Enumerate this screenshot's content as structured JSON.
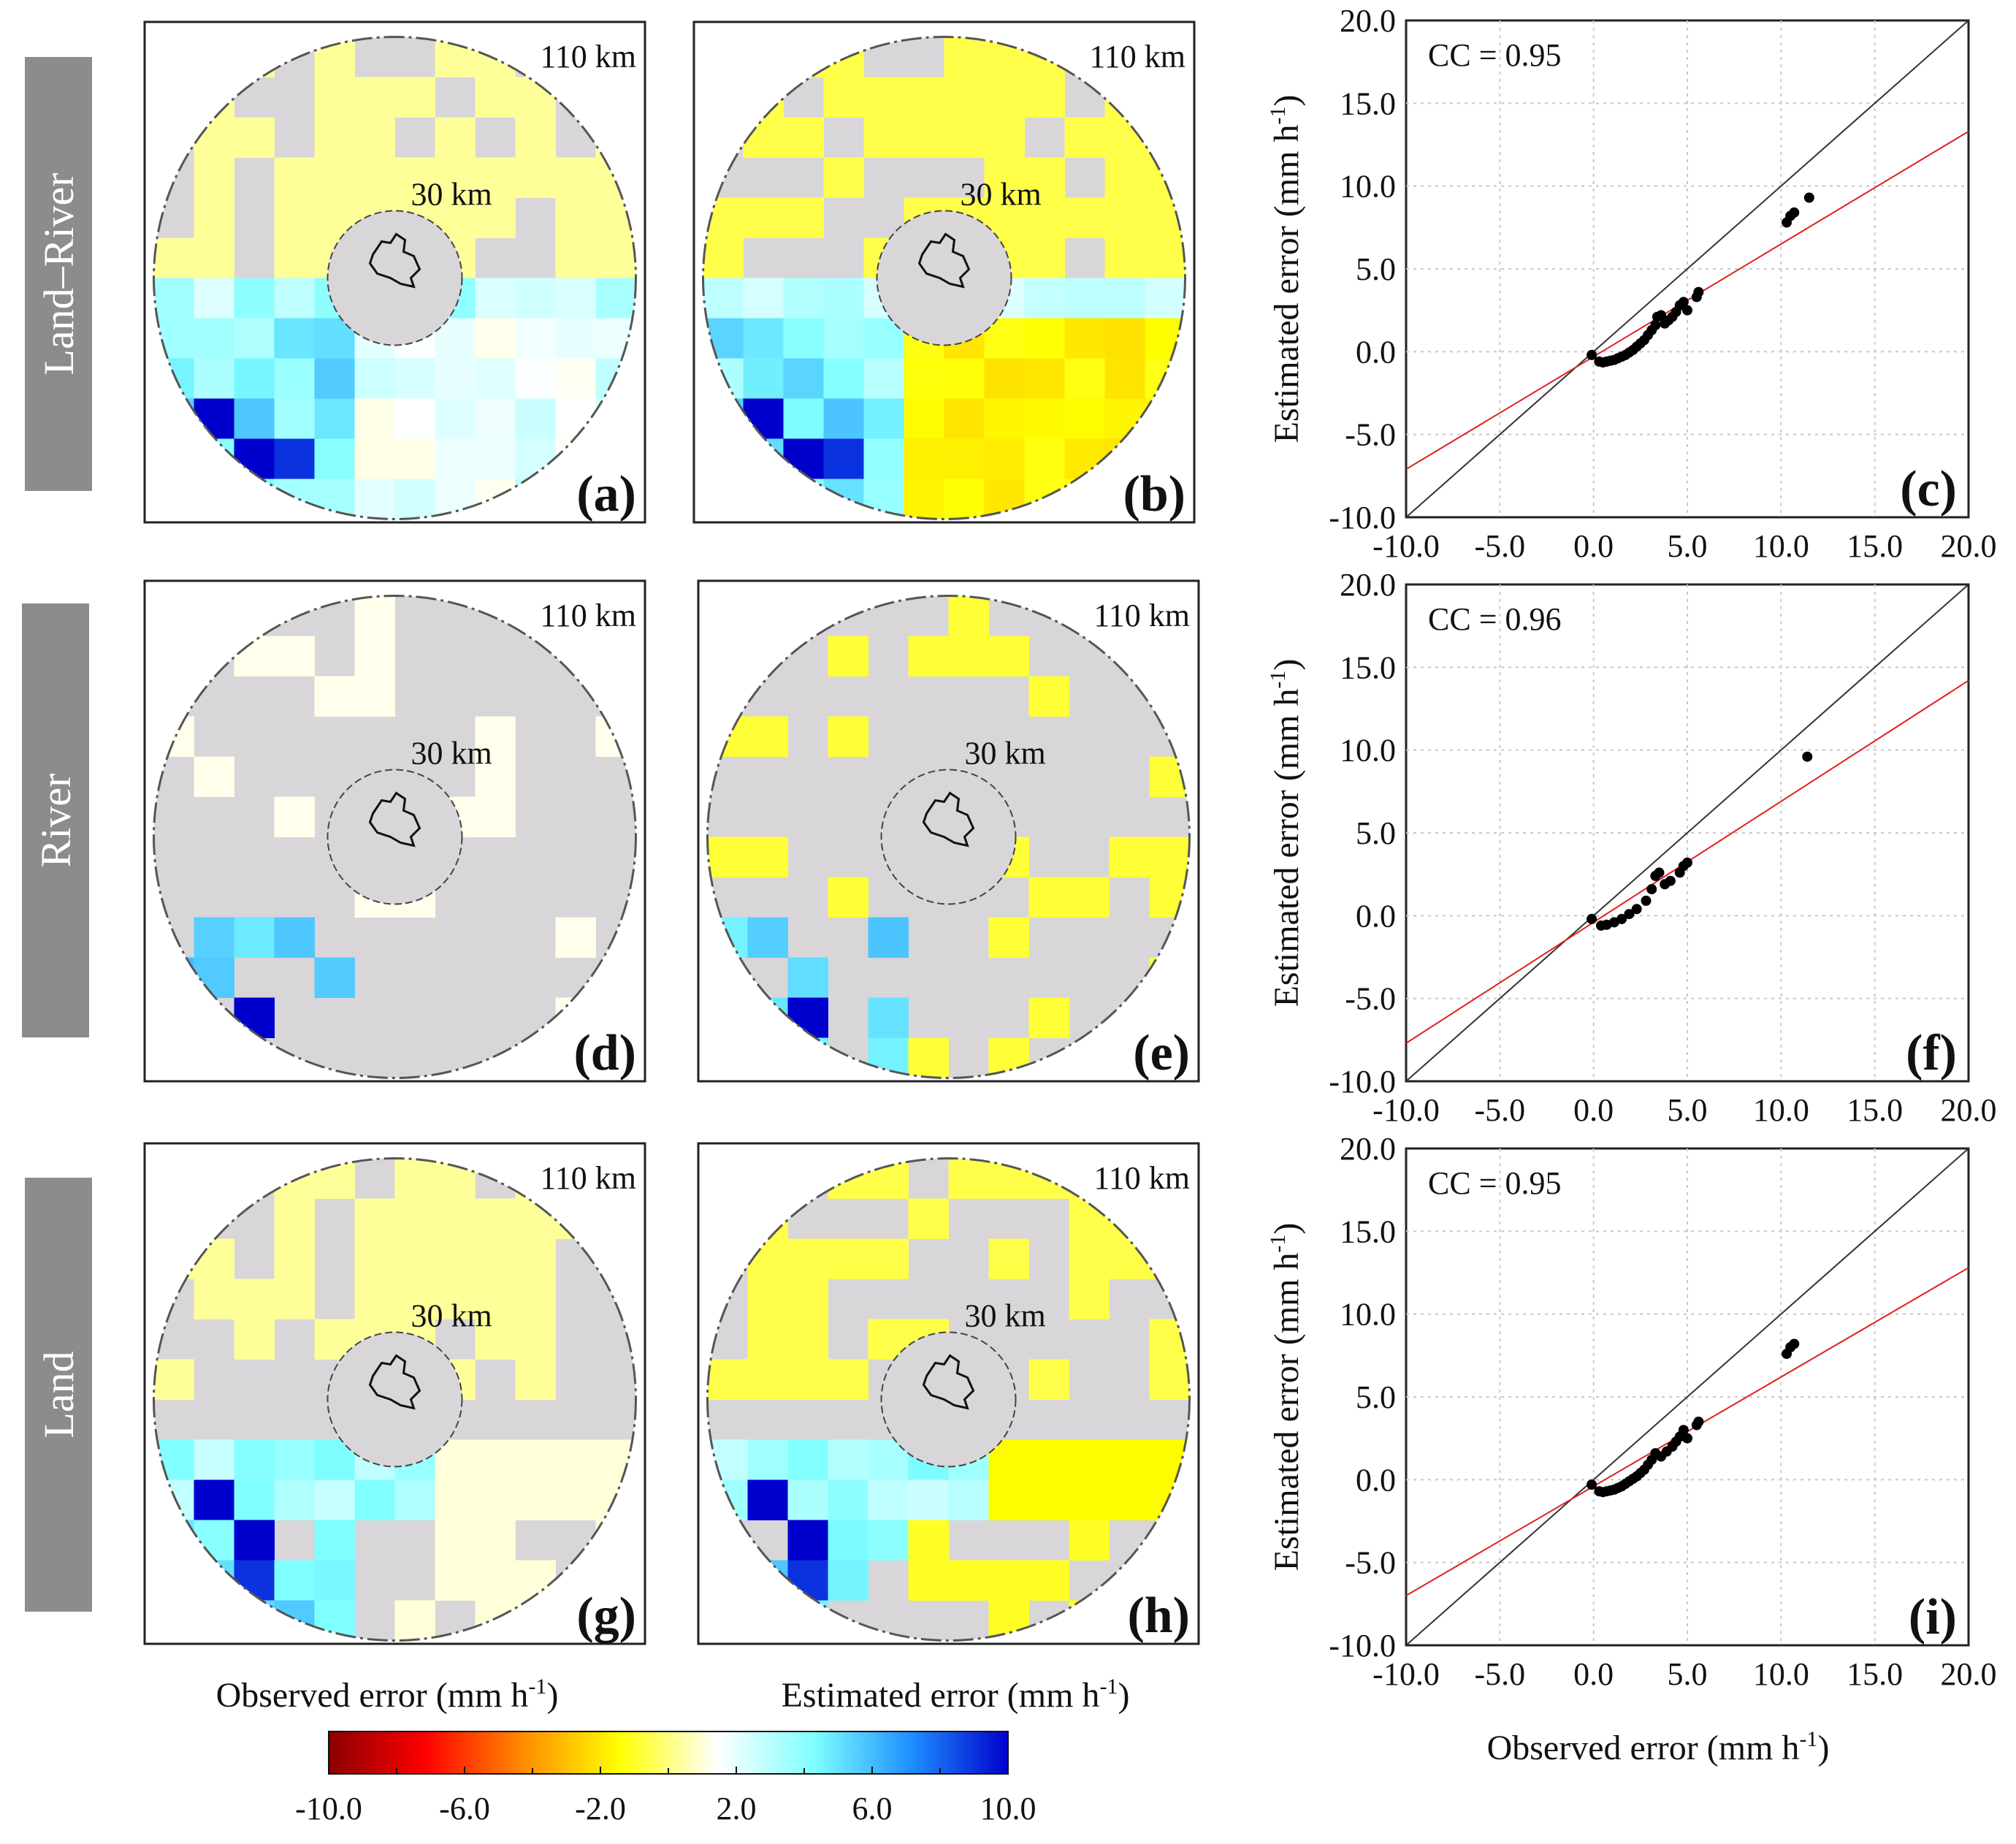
{
  "rows": [
    {
      "label": "Land–River"
    },
    {
      "label": "River"
    },
    {
      "label": "Land"
    }
  ],
  "maps": [
    {
      "letter": "(a)",
      "kind": "observed",
      "outer_label": "110 km",
      "inner_label": "30 km"
    },
    {
      "letter": "(b)",
      "kind": "estimated",
      "outer_label": "110 km",
      "inner_label": "30 km"
    },
    {
      "letter": "(d)",
      "kind": "observed",
      "outer_label": "110 km",
      "inner_label": "30 km"
    },
    {
      "letter": "(e)",
      "kind": "estimated",
      "outer_label": "110 km",
      "inner_label": "30 km"
    },
    {
      "letter": "(g)",
      "kind": "observed",
      "outer_label": "110 km",
      "inner_label": "30 km"
    },
    {
      "letter": "(h)",
      "kind": "estimated",
      "outer_label": "110 km",
      "inner_label": "30 km"
    }
  ],
  "map_xlabels": {
    "observed": {
      "text": "Observed error (mm h",
      "sup": "-1",
      "close": ")"
    },
    "estimated": {
      "text": "Estimated error (mm h",
      "sup": "-1",
      "close": ")"
    }
  },
  "colorbar": {
    "ticks": [
      "-10.0",
      "-6.0",
      "-2.0",
      "2.0",
      "6.0",
      "10.0"
    ],
    "tick_values": [
      -10,
      -6,
      -2,
      2,
      6,
      10
    ],
    "min": -10,
    "max": 10,
    "colors": [
      "#8b0000",
      "#ff0000",
      "#ff8c00",
      "#ffff00",
      "#ffffff",
      "#7fffff",
      "#1e90ff",
      "#0000cd"
    ]
  },
  "chart_data": [
    {
      "type": "scatter",
      "letter": "(c)",
      "cc_label": "CC = 0.95",
      "xlim": [
        -10,
        20
      ],
      "ylim": [
        -10,
        20
      ],
      "xticks": [
        "-10.0",
        "-5.0",
        "0.0",
        "5.0",
        "10.0",
        "15.0",
        "20.0"
      ],
      "yticks": [
        "-10.0",
        "-5.0",
        "0.0",
        "5.0",
        "10.0",
        "15.0",
        "20.0"
      ],
      "ylabel": "Estimated error (mm h",
      "ylabel_sup": "-1",
      "ylabel_close": ")",
      "grid": true,
      "one_to_one": true,
      "fit": {
        "slope": 0.68,
        "intercept": -0.3,
        "color": "#e02020"
      },
      "points": [
        [
          -0.1,
          -0.2
        ],
        [
          0.3,
          -0.6
        ],
        [
          0.5,
          -0.65
        ],
        [
          0.7,
          -0.6
        ],
        [
          0.9,
          -0.55
        ],
        [
          1.1,
          -0.5
        ],
        [
          1.3,
          -0.4
        ],
        [
          1.5,
          -0.3
        ],
        [
          1.7,
          -0.2
        ],
        [
          1.9,
          -0.05
        ],
        [
          2.1,
          0.1
        ],
        [
          2.3,
          0.3
        ],
        [
          2.5,
          0.5
        ],
        [
          2.7,
          0.7
        ],
        [
          2.9,
          1.0
        ],
        [
          3.1,
          1.3
        ],
        [
          3.3,
          1.6
        ],
        [
          3.4,
          2.1
        ],
        [
          3.6,
          2.2
        ],
        [
          3.8,
          1.7
        ],
        [
          4.0,
          1.9
        ],
        [
          4.2,
          2.1
        ],
        [
          4.4,
          2.4
        ],
        [
          4.6,
          2.8
        ],
        [
          4.8,
          3.0
        ],
        [
          5.0,
          2.5
        ],
        [
          5.5,
          3.3
        ],
        [
          5.6,
          3.6
        ],
        [
          10.3,
          7.8
        ],
        [
          10.5,
          8.2
        ],
        [
          10.7,
          8.4
        ],
        [
          11.5,
          9.3
        ]
      ]
    },
    {
      "type": "scatter",
      "letter": "(f)",
      "cc_label": "CC = 0.96",
      "xlim": [
        -10,
        20
      ],
      "ylim": [
        -10,
        20
      ],
      "xticks": [
        "-10.0",
        "-5.0",
        "0.0",
        "5.0",
        "10.0",
        "15.0",
        "20.0"
      ],
      "yticks": [
        "-10.0",
        "-5.0",
        "0.0",
        "5.0",
        "10.0",
        "15.0",
        "20.0"
      ],
      "ylabel": "Estimated error (mm h",
      "ylabel_sup": "-1",
      "ylabel_close": ")",
      "grid": true,
      "one_to_one": true,
      "fit": {
        "slope": 0.73,
        "intercept": -0.4,
        "color": "#e02020"
      },
      "points": [
        [
          -0.1,
          -0.2
        ],
        [
          0.4,
          -0.6
        ],
        [
          0.7,
          -0.55
        ],
        [
          1.1,
          -0.4
        ],
        [
          1.5,
          -0.2
        ],
        [
          1.9,
          0.1
        ],
        [
          2.3,
          0.4
        ],
        [
          2.8,
          0.9
        ],
        [
          3.1,
          1.6
        ],
        [
          3.3,
          2.4
        ],
        [
          3.5,
          2.6
        ],
        [
          3.8,
          1.9
        ],
        [
          4.1,
          2.1
        ],
        [
          4.6,
          2.6
        ],
        [
          4.8,
          3.0
        ],
        [
          5.0,
          3.2
        ],
        [
          11.4,
          9.6
        ]
      ]
    },
    {
      "type": "scatter",
      "letter": "(i)",
      "cc_label": "CC = 0.95",
      "xlim": [
        -10,
        20
      ],
      "ylim": [
        -10,
        20
      ],
      "xticks": [
        "-10.0",
        "-5.0",
        "0.0",
        "5.0",
        "10.0",
        "15.0",
        "20.0"
      ],
      "yticks": [
        "-10.0",
        "-5.0",
        "0.0",
        "5.0",
        "10.0",
        "15.0",
        "20.0"
      ],
      "ylabel": "Estimated error (mm h",
      "ylabel_sup": "-1",
      "ylabel_close": ")",
      "xlabel": "Observed error (mm h",
      "xlabel_sup": "-1",
      "xlabel_close": ")",
      "grid": true,
      "one_to_one": true,
      "fit": {
        "slope": 0.66,
        "intercept": -0.4,
        "color": "#e02020"
      },
      "points": [
        [
          -0.1,
          -0.3
        ],
        [
          0.3,
          -0.7
        ],
        [
          0.5,
          -0.75
        ],
        [
          0.7,
          -0.7
        ],
        [
          0.9,
          -0.65
        ],
        [
          1.1,
          -0.6
        ],
        [
          1.3,
          -0.5
        ],
        [
          1.5,
          -0.4
        ],
        [
          1.7,
          -0.25
        ],
        [
          1.9,
          -0.1
        ],
        [
          2.1,
          0.05
        ],
        [
          2.3,
          0.2
        ],
        [
          2.5,
          0.4
        ],
        [
          2.7,
          0.6
        ],
        [
          2.9,
          0.9
        ],
        [
          3.1,
          1.2
        ],
        [
          3.3,
          1.6
        ],
        [
          3.6,
          1.4
        ],
        [
          3.9,
          1.7
        ],
        [
          4.2,
          2.0
        ],
        [
          4.4,
          2.3
        ],
        [
          4.6,
          2.6
        ],
        [
          4.8,
          3.0
        ],
        [
          5.0,
          2.5
        ],
        [
          5.5,
          3.3
        ],
        [
          5.6,
          3.5
        ],
        [
          10.3,
          7.6
        ],
        [
          10.5,
          8.0
        ],
        [
          10.7,
          8.2
        ]
      ]
    }
  ]
}
